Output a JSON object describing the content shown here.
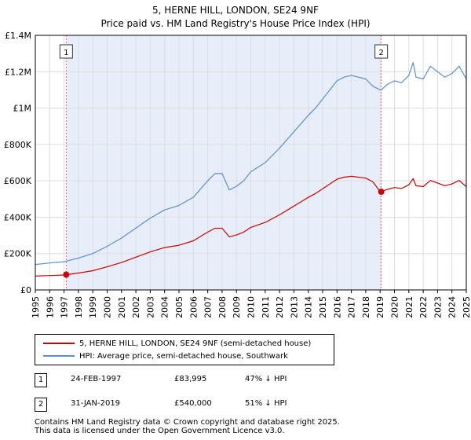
{
  "header": {
    "title": "5, HERNE HILL, LONDON, SE24 9NF",
    "subtitle": "Price paid vs. HM Land Registry's House Price Index (HPI)"
  },
  "colors": {
    "property_line": "#cc0000",
    "hpi_line": "#5b8fcf",
    "shade": "#e8eef9",
    "marker_line": "#e06666"
  },
  "legend": {
    "property_label": "5, HERNE HILL, LONDON, SE24 9NF (semi-detached house)",
    "hpi_label": "HPI: Average price, semi-detached house, Southwark"
  },
  "transactions": [
    {
      "num": "1",
      "date": "24-FEB-1997",
      "price": "£83,995",
      "hpi": "47% ↓ HPI"
    },
    {
      "num": "2",
      "date": "31-JAN-2019",
      "price": "£540,000",
      "hpi": "51% ↓ HPI"
    }
  ],
  "footer": {
    "line1": "Contains HM Land Registry data © Crown copyright and database right 2025.",
    "line2": "This data is licensed under the Open Government Licence v3.0."
  },
  "chart_data": {
    "type": "line",
    "title": "5, HERNE HILL, LONDON, SE24 9NF",
    "subtitle": "Price paid vs. HM Land Registry's House Price Index (HPI)",
    "xlim": [
      1995,
      2025
    ],
    "ylim": [
      0,
      1400000
    ],
    "x_ticks": [
      "1995",
      "1996",
      "1997",
      "1998",
      "1999",
      "2000",
      "2001",
      "2002",
      "2003",
      "2004",
      "2005",
      "2006",
      "2007",
      "2008",
      "2009",
      "2010",
      "2011",
      "2012",
      "2013",
      "2014",
      "2015",
      "2016",
      "2017",
      "2018",
      "2019",
      "2020",
      "2021",
      "2022",
      "2023",
      "2024",
      "2025"
    ],
    "y_ticks": [
      {
        "value": 0,
        "label": "£0"
      },
      {
        "value": 200000,
        "label": "£200K"
      },
      {
        "value": 400000,
        "label": "£400K"
      },
      {
        "value": 600000,
        "label": "£600K"
      },
      {
        "value": 800000,
        "label": "£800K"
      },
      {
        "value": 1000000,
        "label": "£1M"
      },
      {
        "value": 1200000,
        "label": "£1.2M"
      },
      {
        "value": 1400000,
        "label": "£1.4M"
      }
    ],
    "grid": true,
    "shaded_range": [
      1997.15,
      2019.08
    ],
    "sale_markers": [
      {
        "label": "1",
        "x": 1997.15,
        "y": 83995
      },
      {
        "label": "2",
        "x": 2019.08,
        "y": 540000
      }
    ],
    "series": [
      {
        "name": "HPI: Average price, semi-detached house, Southwark",
        "color": "#5b8fcf",
        "x": [
          1995,
          1996,
          1997,
          1997.15,
          1998,
          1999,
          2000,
          2001,
          2002,
          2003,
          2004,
          2005,
          2006,
          2007,
          2007.5,
          2008,
          2008.5,
          2009,
          2009.5,
          2010,
          2011,
          2012,
          2013,
          2014,
          2014.5,
          2015,
          2016,
          2016.5,
          2017,
          2018,
          2018.5,
          2019,
          2019.08,
          2019.5,
          2020,
          2020.5,
          2021,
          2021.3,
          2021.5,
          2022,
          2022.5,
          2023,
          2023.5,
          2024,
          2024.5,
          2025
        ],
        "values": [
          140000,
          148000,
          155000,
          158000,
          175000,
          200000,
          240000,
          285000,
          340000,
          395000,
          440000,
          465000,
          510000,
          600000,
          640000,
          640000,
          550000,
          570000,
          600000,
          650000,
          700000,
          780000,
          870000,
          960000,
          1000000,
          1050000,
          1150000,
          1170000,
          1180000,
          1160000,
          1120000,
          1100000,
          1100000,
          1130000,
          1150000,
          1140000,
          1180000,
          1250000,
          1170000,
          1160000,
          1230000,
          1200000,
          1170000,
          1190000,
          1230000,
          1160000
        ]
      },
      {
        "name": "5, HERNE HILL, LONDON, SE24 9NF (semi-detached house)",
        "color": "#cc0000",
        "x": [
          1995,
          1996,
          1997,
          1997.15,
          1998,
          1999,
          2000,
          2001,
          2002,
          2003,
          2004,
          2005,
          2006,
          2007,
          2007.5,
          2008,
          2008.5,
          2009,
          2009.5,
          2010,
          2011,
          2012,
          2013,
          2014,
          2014.5,
          2015,
          2016,
          2016.5,
          2017,
          2018,
          2018.5,
          2019,
          2019.08,
          2019.5,
          2020,
          2020.5,
          2021,
          2021.3,
          2021.5,
          2022,
          2022.5,
          2023,
          2023.5,
          2024,
          2024.5,
          2025
        ],
        "values": [
          76000,
          79000,
          82000,
          83995,
          93000,
          106000,
          127000,
          151000,
          180000,
          209000,
          233000,
          246000,
          270000,
          318000,
          339000,
          339000,
          292000,
          302000,
          318000,
          344000,
          371000,
          413000,
          461000,
          509000,
          530000,
          556000,
          609000,
          620000,
          625000,
          615000,
          594000,
          540000,
          540000,
          553000,
          563000,
          558000,
          578000,
          612000,
          573000,
          568000,
          602000,
          588000,
          573000,
          583000,
          602000,
          568000
        ]
      }
    ]
  }
}
